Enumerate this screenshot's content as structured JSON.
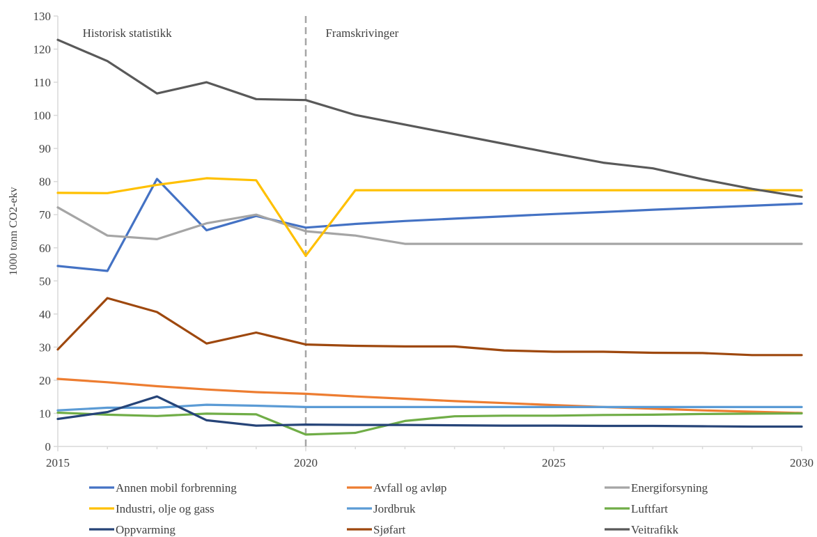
{
  "chart_data": {
    "type": "line",
    "title": "",
    "xlabel": "",
    "ylabel": "1000 tonn CO2-ekv",
    "xlim": [
      2015,
      2030
    ],
    "ylim": [
      0,
      130
    ],
    "x_ticks": [
      2015,
      2020,
      2025,
      2030
    ],
    "x_tick_labels": [
      "2015",
      "2020",
      "2025",
      "2030"
    ],
    "y_ticks": [
      0,
      10,
      20,
      30,
      40,
      50,
      60,
      70,
      80,
      90,
      100,
      110,
      120,
      130
    ],
    "y_tick_labels": [
      "0",
      "10",
      "20",
      "30",
      "40",
      "50",
      "60",
      "70",
      "80",
      "90",
      "100",
      "110",
      "120",
      "130"
    ],
    "grid": false,
    "legend_position": "bottom",
    "divider_x": 2020,
    "annotations": [
      {
        "text": "Historisk statistikk",
        "x": 2015.5,
        "y": 125
      },
      {
        "text": "Framskrivinger",
        "x": 2020.4,
        "y": 125
      }
    ],
    "x": [
      2015,
      2016,
      2017,
      2018,
      2019,
      2020,
      2021,
      2022,
      2023,
      2024,
      2025,
      2026,
      2027,
      2028,
      2029,
      2030
    ],
    "series": [
      {
        "name": "Annen mobil forbrenning",
        "color": "#4472C4",
        "values": [
          54.5,
          53.0,
          80.8,
          65.3,
          69.6,
          66.1,
          67.2,
          68.1,
          68.8,
          69.5,
          70.2,
          70.8,
          71.5,
          72.1,
          72.7,
          73.3
        ]
      },
      {
        "name": "Avfall og avløp",
        "color": "#ED7D31",
        "values": [
          20.4,
          19.4,
          18.2,
          17.2,
          16.4,
          15.9,
          15.1,
          14.4,
          13.7,
          13.1,
          12.5,
          11.9,
          11.4,
          10.9,
          10.5,
          10.1
        ]
      },
      {
        "name": "Energiforsyning",
        "color": "#A5A5A5",
        "values": [
          72.2,
          63.7,
          62.6,
          67.4,
          70.0,
          65.0,
          63.7,
          61.2,
          61.2,
          61.2,
          61.2,
          61.2,
          61.2,
          61.2,
          61.2,
          61.2
        ]
      },
      {
        "name": "Industri, olje og gass",
        "color": "#FFC000",
        "values": [
          76.6,
          76.5,
          79.0,
          81.0,
          80.4,
          57.6,
          77.4,
          77.4,
          77.4,
          77.4,
          77.4,
          77.4,
          77.4,
          77.4,
          77.4,
          77.4
        ]
      },
      {
        "name": "Jordbruk",
        "color": "#5B9BD5",
        "values": [
          10.9,
          11.7,
          11.7,
          12.6,
          12.3,
          11.9,
          11.9,
          11.9,
          11.9,
          11.9,
          11.9,
          11.9,
          11.9,
          11.9,
          11.9,
          11.9
        ]
      },
      {
        "name": "Luftfart",
        "color": "#70AD47",
        "values": [
          10.2,
          9.6,
          9.2,
          9.9,
          9.7,
          3.6,
          4.1,
          7.7,
          9.1,
          9.3,
          9.3,
          9.5,
          9.6,
          9.8,
          9.9,
          10.0
        ]
      },
      {
        "name": "Oppvarming",
        "color": "#264478",
        "values": [
          8.3,
          10.4,
          15.1,
          7.9,
          6.3,
          6.6,
          6.5,
          6.5,
          6.4,
          6.3,
          6.3,
          6.2,
          6.2,
          6.1,
          6.0,
          6.0
        ]
      },
      {
        "name": "Sjøfart",
        "color": "#9E480E",
        "values": [
          29.3,
          44.8,
          40.6,
          31.1,
          34.4,
          30.8,
          30.4,
          30.2,
          30.2,
          29.0,
          28.6,
          28.6,
          28.3,
          28.2,
          27.6,
          27.6
        ]
      },
      {
        "name": "Veitrafikk",
        "color": "#595959",
        "values": [
          122.8,
          116.4,
          106.6,
          110.0,
          104.9,
          104.6,
          100.1,
          97.2,
          94.3,
          91.4,
          88.5,
          85.7,
          84.0,
          80.7,
          77.8,
          75.4
        ]
      }
    ]
  }
}
